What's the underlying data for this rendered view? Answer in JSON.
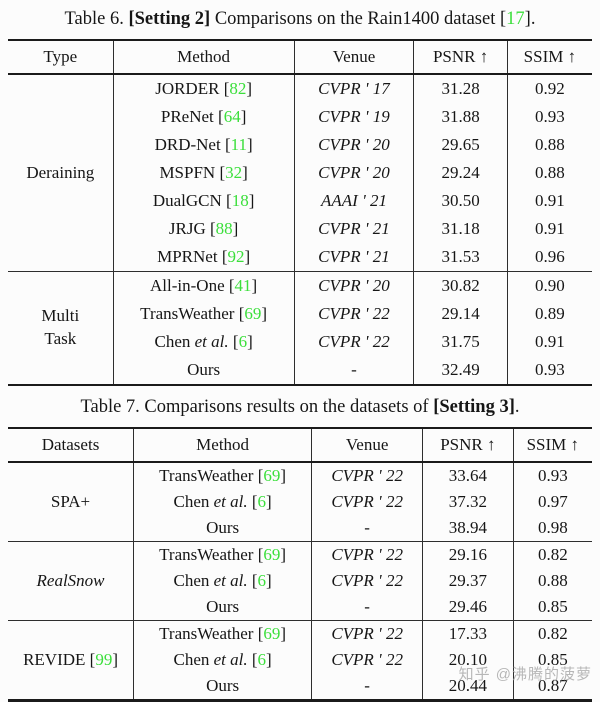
{
  "page": {
    "background": "#fcfcfc",
    "text_color": "#161616",
    "rule_color": "#1b1b1b",
    "citation_color": "#3bdf3b"
  },
  "etal_label": "et al.",
  "watermark": {
    "text": "知乎 @沸腾的菠萝",
    "color": "#a6a6a6"
  },
  "tables": [
    {
      "name": "table6",
      "caption": [
        {
          "text": "Table 6. "
        },
        {
          "text": "[Setting 2]",
          "bold": true
        },
        {
          "text": " Comparisons on the Rain1400 dataset ["
        },
        {
          "text": "17",
          "cite": true
        },
        {
          "text": "]."
        }
      ],
      "headers": [
        "Type",
        "Method",
        "Venue",
        "PSNR ↑",
        "SSIM ↑"
      ],
      "col_widths": [
        "18%",
        "31%",
        "20.5%",
        "16%",
        "14.5%"
      ],
      "groups": [
        {
          "label_lines": [
            "Deraining"
          ],
          "label_italic": false,
          "label_cite": null,
          "rows": [
            {
              "method": "JORDER",
              "etal": false,
              "cite": "82",
              "venue": "CVPR ' 17",
              "venue_italic": true,
              "psnr": "31.28",
              "ssim": "0.92"
            },
            {
              "method": "PReNet",
              "etal": false,
              "cite": "64",
              "venue": "CVPR ' 19",
              "venue_italic": true,
              "psnr": "31.88",
              "ssim": "0.93"
            },
            {
              "method": "DRD-Net",
              "etal": false,
              "cite": "11",
              "venue": "CVPR ' 20",
              "venue_italic": true,
              "psnr": "29.65",
              "ssim": "0.88"
            },
            {
              "method": "MSPFN",
              "etal": false,
              "cite": "32",
              "venue": "CVPR ' 20",
              "venue_italic": true,
              "psnr": "29.24",
              "ssim": "0.88"
            },
            {
              "method": "DualGCN",
              "etal": false,
              "cite": "18",
              "venue": "AAAI ' 21",
              "venue_italic": true,
              "psnr": "30.50",
              "ssim": "0.91"
            },
            {
              "method": "JRJG",
              "etal": false,
              "cite": "88",
              "venue": "CVPR ' 21",
              "venue_italic": true,
              "psnr": "31.18",
              "ssim": "0.91"
            },
            {
              "method": "MPRNet",
              "etal": false,
              "cite": "92",
              "venue": "CVPR ' 21",
              "venue_italic": true,
              "psnr": "31.53",
              "ssim": "0.96"
            }
          ]
        },
        {
          "label_lines": [
            "Multi",
            "Task"
          ],
          "label_italic": false,
          "label_cite": null,
          "rows": [
            {
              "method": "All-in-One",
              "etal": false,
              "cite": "41",
              "venue": "CVPR ' 20",
              "venue_italic": true,
              "psnr": "30.82",
              "ssim": "0.90"
            },
            {
              "method": "TransWeather",
              "etal": false,
              "cite": "69",
              "venue": "CVPR ' 22",
              "venue_italic": true,
              "psnr": "29.14",
              "ssim": "0.89"
            },
            {
              "method": "Chen",
              "etal": true,
              "cite": "6",
              "venue": "CVPR ' 22",
              "venue_italic": true,
              "psnr": "31.75",
              "ssim": "0.91"
            },
            {
              "method": "Ours",
              "etal": false,
              "cite": null,
              "venue": "-",
              "venue_italic": false,
              "psnr": "32.49",
              "ssim": "0.93"
            }
          ]
        }
      ]
    },
    {
      "name": "table7",
      "caption": [
        {
          "text": "Table 7. Comparisons results on the datasets of "
        },
        {
          "text": "[Setting 3]",
          "bold": true
        },
        {
          "text": "."
        }
      ],
      "headers": [
        "Datasets",
        "Method",
        "Venue",
        "PSNR ↑",
        "SSIM ↑"
      ],
      "col_widths": [
        "21.5%",
        "30.5%",
        "19%",
        "15.5%",
        "13.5%"
      ],
      "groups": [
        {
          "label_lines": [
            "SPA+"
          ],
          "label_italic": false,
          "label_cite": null,
          "rows": [
            {
              "method": "TransWeather",
              "etal": false,
              "cite": "69",
              "venue": "CVPR ' 22",
              "venue_italic": true,
              "psnr": "33.64",
              "ssim": "0.93"
            },
            {
              "method": "Chen",
              "etal": true,
              "cite": "6",
              "venue": "CVPR ' 22",
              "venue_italic": true,
              "psnr": "37.32",
              "ssim": "0.97"
            },
            {
              "method": "Ours",
              "etal": false,
              "cite": null,
              "venue": "-",
              "venue_italic": false,
              "psnr": "38.94",
              "ssim": "0.98"
            }
          ]
        },
        {
          "label_lines": [
            "RealSnow"
          ],
          "label_italic": true,
          "label_cite": null,
          "rows": [
            {
              "method": "TransWeather",
              "etal": false,
              "cite": "69",
              "venue": "CVPR ' 22",
              "venue_italic": true,
              "psnr": "29.16",
              "ssim": "0.82"
            },
            {
              "method": "Chen",
              "etal": true,
              "cite": "6",
              "venue": "CVPR ' 22",
              "venue_italic": true,
              "psnr": "29.37",
              "ssim": "0.88"
            },
            {
              "method": "Ours",
              "etal": false,
              "cite": null,
              "venue": "-",
              "venue_italic": false,
              "psnr": "29.46",
              "ssim": "0.85"
            }
          ]
        },
        {
          "label_lines": [
            "REVIDE"
          ],
          "label_italic": false,
          "label_cite": "99",
          "rows": [
            {
              "method": "TransWeather",
              "etal": false,
              "cite": "69",
              "venue": "CVPR ' 22",
              "venue_italic": true,
              "psnr": "17.33",
              "ssim": "0.82"
            },
            {
              "method": "Chen",
              "etal": true,
              "cite": "6",
              "venue": "CVPR ' 22",
              "venue_italic": true,
              "psnr": "20.10",
              "ssim": "0.85"
            },
            {
              "method": "Ours",
              "etal": false,
              "cite": null,
              "venue": "-",
              "venue_italic": false,
              "psnr": "20.44",
              "ssim": "0.87"
            }
          ]
        }
      ]
    }
  ]
}
